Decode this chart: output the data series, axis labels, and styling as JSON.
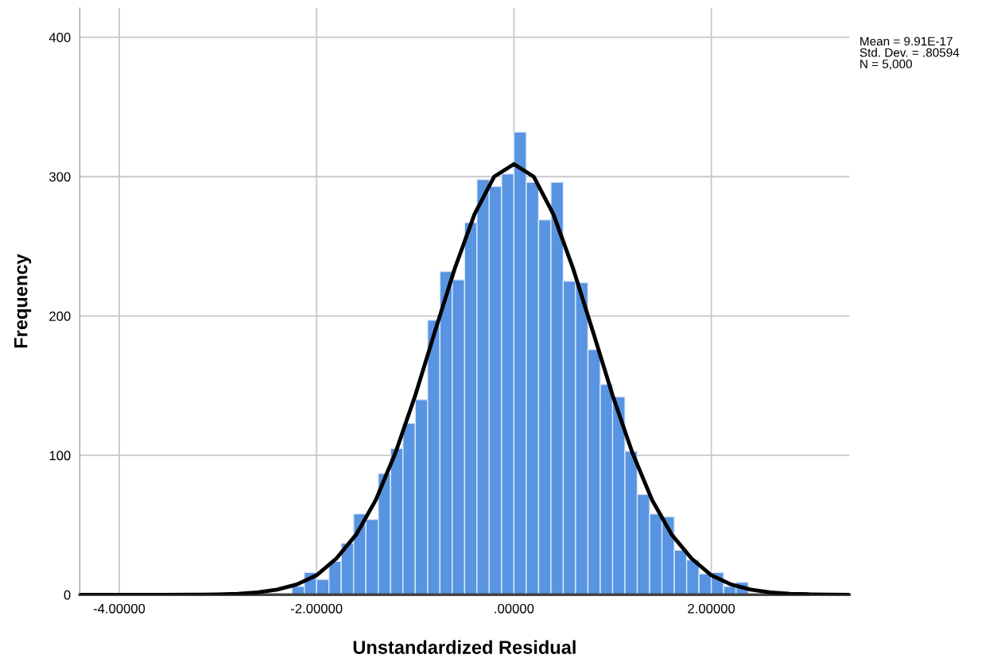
{
  "chart_data": {
    "type": "histogram",
    "xlabel": "Unstandardized Residual",
    "ylabel": "Frequency",
    "annotations": [
      "Mean = 9.91E-17\nStd. Dev. = .80594\nN = 5,000"
    ],
    "bins": [
      -2.5,
      -2.375,
      -2.25,
      -2.125,
      -2.0,
      -1.875,
      -1.75,
      -1.625,
      -1.5,
      -1.375,
      -1.25,
      -1.125,
      -1.0,
      -0.875,
      -0.75,
      -0.625,
      -0.5,
      -0.375,
      -0.25,
      -0.125,
      0,
      0.125,
      0.25,
      0.375,
      0.5,
      0.625,
      0.75,
      0.875,
      1.0,
      1.125,
      1.25,
      1.375,
      1.5,
      1.625,
      1.75,
      1.875,
      2.0,
      2.125,
      2.25,
      2.375
    ],
    "values": [
      null,
      null,
      6,
      16,
      11,
      24,
      37,
      58,
      54,
      87,
      105,
      123,
      140,
      197,
      232,
      226,
      267,
      298,
      293,
      302,
      332,
      296,
      269,
      296,
      225,
      224,
      176,
      151,
      142,
      103,
      72,
      58,
      56,
      32,
      25,
      15,
      16,
      6,
      9
    ],
    "color": "#5894e2",
    "series": [
      {
        "type": "line",
        "color": "#000000",
        "x": [
          -4.4,
          -4.0,
          -3.6,
          -3.2,
          -3.0,
          -2.8,
          -2.6,
          -2.4,
          -2.2,
          -2.0,
          -1.8,
          -1.6,
          -1.4,
          -1.2,
          -1.0,
          -0.8,
          -0.6,
          -0.4,
          -0.2,
          0,
          0.2,
          0.4,
          0.6,
          0.8,
          1.0,
          1.2,
          1.4,
          1.6,
          1.8,
          2.0,
          2.2,
          2.4,
          2.6,
          2.8,
          3.0,
          3.2,
          3.4
        ],
        "values": [
          0,
          0,
          0,
          0.1,
          0.3,
          0.7,
          1.7,
          3.7,
          7.4,
          14,
          26,
          43,
          68,
          102,
          143,
          189,
          234,
          273,
          300,
          309,
          300,
          273,
          234,
          189,
          143,
          102,
          68,
          43,
          26,
          14,
          7.4,
          3.7,
          1.7,
          0.7,
          0.3,
          0.1,
          0
        ]
      }
    ],
    "xlim": [
      -4.4,
      3.4
    ],
    "ylim": [
      0,
      421
    ],
    "xticks": [
      {
        "value": -4,
        "label": "-4.00000"
      },
      {
        "value": -2,
        "label": "-2.00000"
      },
      {
        "value": 0,
        "label": ".00000"
      },
      {
        "value": 2,
        "label": "2.00000"
      }
    ],
    "yticks": [
      0,
      100,
      200,
      300,
      400
    ],
    "grid": true
  }
}
